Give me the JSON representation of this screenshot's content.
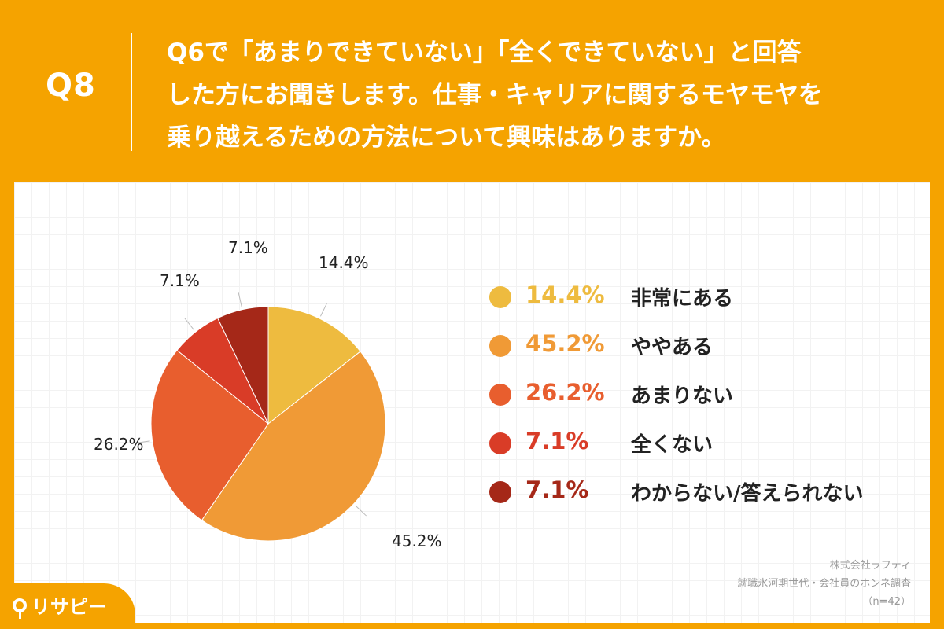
{
  "header": {
    "qnum": "Q8",
    "question_lines": [
      "Q6で「あまりできていない」「全くできていない」と回答",
      "した方にお聞きします。仕事・キャリアに関するモヤモヤを",
      "乗り越えるための方法について興味はありますか。"
    ]
  },
  "source": {
    "company": "株式会社ラフティ",
    "survey": "就職氷河期世代・会社員のホンネ調査",
    "sample": "（n=42）"
  },
  "logo": {
    "text": "リサピー"
  },
  "chart_data": {
    "type": "pie",
    "categories": [
      "非常にある",
      "ややある",
      "あまりない",
      "全くない",
      "わからない/答えられない"
    ],
    "values": [
      14.4,
      45.2,
      26.2,
      7.1,
      7.1
    ],
    "labels": [
      "14.4%",
      "45.2%",
      "26.2%",
      "7.1%",
      "7.1%"
    ],
    "colors": [
      "#EEBB3F",
      "#F09A36",
      "#E85E2E",
      "#D93C27",
      "#A52818"
    ],
    "legend_position": "right",
    "start": "12 o'clock, clockwise"
  }
}
